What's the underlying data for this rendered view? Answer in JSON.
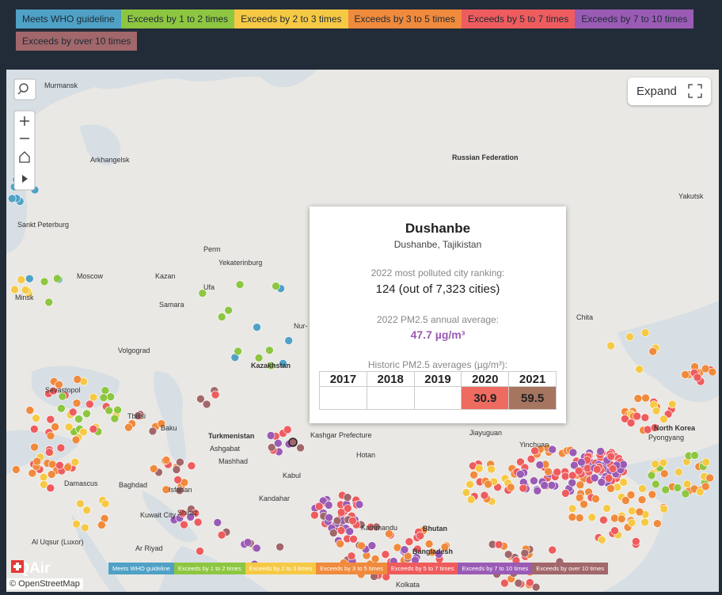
{
  "legend": {
    "items": [
      {
        "label": "Meets WHO guideline",
        "color": "#4fa1c6"
      },
      {
        "label": "Exceeds by 1 to 2 times",
        "color": "#8dc640"
      },
      {
        "label": "Exceeds by 2 to 3 times",
        "color": "#f6c945"
      },
      {
        "label": "Exceeds by 3 to 5 times",
        "color": "#f08a3c"
      },
      {
        "label": "Exceeds by 5 to 7 times",
        "color": "#ee5c5e"
      },
      {
        "label": "Exceeds by 7 to 10 times",
        "color": "#9a5bb5"
      },
      {
        "label": "Exceeds by over 10 times",
        "color": "#a1676a"
      }
    ]
  },
  "controls": {
    "expand": "Expand"
  },
  "map": {
    "logo": "IQAir",
    "attribution": "© OpenStreetMap",
    "labels": [
      "Murmansk",
      "Arkhangelsk",
      "Russian Federation",
      "Yakutsk",
      "Sankt Peterburg",
      "Perm",
      "Yekaterinburg",
      "Moscow",
      "Kazan",
      "Ufa",
      "Minsk",
      "Samara",
      "Chita",
      "Nur-",
      "Volgograd",
      "Kazakhstan",
      "Sevastopol",
      "Tbilisi",
      "Baku",
      "Turkmenistan",
      "Kashgar Prefecture",
      "Ashgabat",
      "Mashhad",
      "Hotan",
      "Jiayuguan",
      "Yinchuan",
      "North Korea",
      "Pyongyang",
      "Kabul",
      "Kandahar",
      "Baghdad",
      "Isfahan",
      "Damascus",
      "Kuwait City",
      "Shiraz",
      "Kathmandu",
      "Bhutan",
      "Bangladesh",
      "Al Uqsur (Luxor)",
      "Ar Riyad",
      "Kolkata"
    ]
  },
  "tooltip": {
    "city": "Dushanbe",
    "location": "Dushanbe, Tajikistan",
    "ranking_label": "2022 most polluted city ranking:",
    "ranking": "124 (out of 7,323 cities)",
    "average_label": "2022 PM2.5 annual average:",
    "average": "47.7 µg/m³",
    "historic_label": "Historic PM2.5 averages (µg/m³):",
    "table": {
      "columns": [
        "2017",
        "2018",
        "2019",
        "2020",
        "2021"
      ],
      "values": [
        null,
        null,
        null,
        30.9,
        59.5
      ],
      "colors": [
        null,
        null,
        null,
        "#ee6b60",
        "#a67560"
      ]
    }
  }
}
